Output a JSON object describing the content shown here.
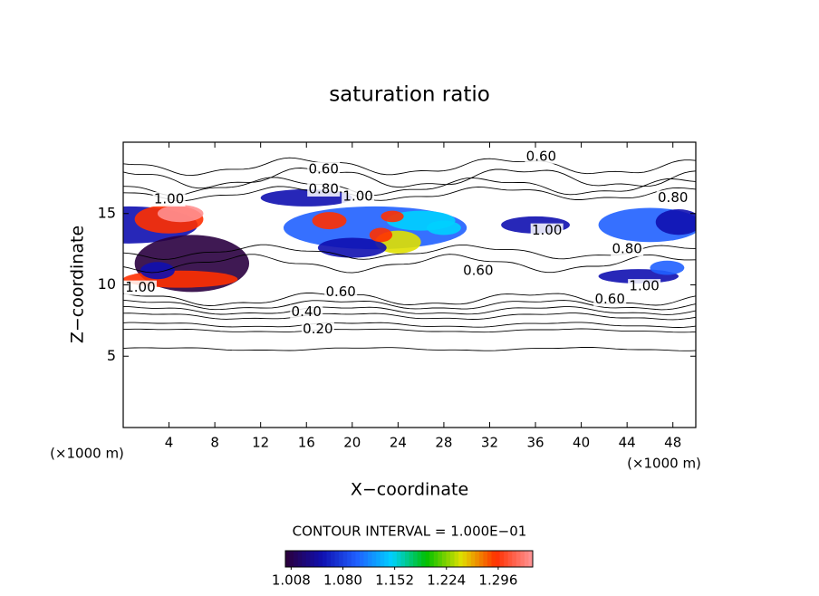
{
  "chart_data": {
    "type": "contour",
    "title": "saturation ratio",
    "x_label": "X−coordinate",
    "y_label": "Z−coordinate",
    "x_units": "(×1000 m)",
    "y_units": "(×1000 m)",
    "xlim": [
      0,
      50
    ],
    "xticks": [
      4,
      8,
      12,
      16,
      20,
      24,
      28,
      32,
      36,
      40,
      44,
      48
    ],
    "ylim": [
      0,
      20
    ],
    "yticks": [
      5,
      10,
      15
    ],
    "contour_interval_text": "CONTOUR INTERVAL = 1.000E−01",
    "contour_labels": [
      "0.60",
      "0.60",
      "0.80",
      "1.00",
      "1.00",
      "0.80",
      "1.00",
      "0.80",
      "0.60",
      "0.60",
      "0.40",
      "0.20",
      "0.60",
      "1.00",
      "1.00"
    ],
    "colormap": [
      "#2a0040",
      "#1010b0",
      "#2060ff",
      "#00d0ff",
      "#00c000",
      "#e0e000",
      "#ff3000",
      "#ff9090"
    ],
    "clim": [
      1.0,
      1.344
    ],
    "cticks": [
      1.008,
      {
        "value": 1.08,
        "label": "1.080"
      },
      1.152,
      1.224,
      1.296
    ]
  }
}
